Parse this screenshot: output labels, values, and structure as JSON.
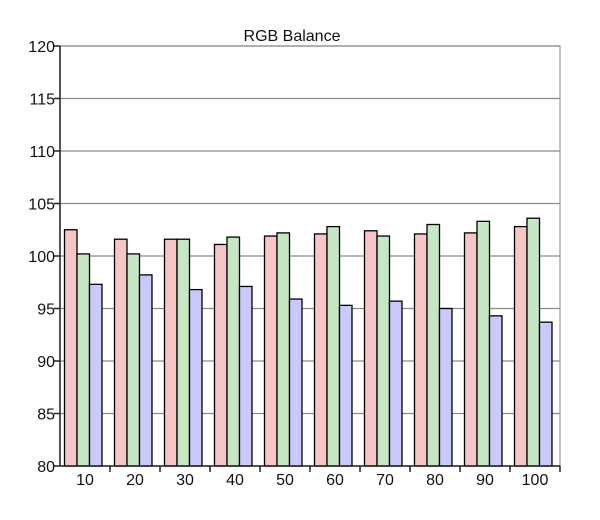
{
  "chart_data": {
    "type": "bar",
    "title": "RGB Balance",
    "xlabel": "",
    "ylabel": "",
    "categories": [
      "10",
      "20",
      "30",
      "40",
      "50",
      "60",
      "70",
      "80",
      "90",
      "100"
    ],
    "series": [
      {
        "color": "#f7c5c5",
        "values": [
          102.5,
          101.6,
          101.6,
          101.1,
          101.9,
          102.1,
          102.4,
          102.1,
          102.2,
          102.8
        ]
      },
      {
        "color": "#c6e7c4",
        "values": [
          100.2,
          100.2,
          101.6,
          101.8,
          102.2,
          102.8,
          101.9,
          103.0,
          103.3,
          103.6
        ]
      },
      {
        "color": "#c9c9fb",
        "values": [
          97.3,
          98.2,
          96.8,
          97.1,
          95.9,
          95.3,
          95.7,
          95.0,
          94.3,
          93.7
        ]
      }
    ],
    "ylim": [
      80,
      120
    ],
    "yticks": [
      "80",
      "85",
      "90",
      "95",
      "100",
      "105",
      "110",
      "115",
      "120"
    ],
    "grid": true,
    "legend": "none"
  }
}
